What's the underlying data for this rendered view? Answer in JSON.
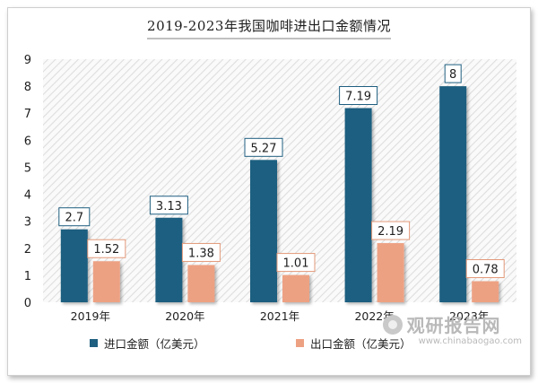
{
  "watermark": {
    "brand": "观研报告网",
    "site": "www.chinabaogao.com"
  },
  "chart_data": {
    "type": "bar",
    "title": "2019-2023年我国咖啡进出口金额情况",
    "categories": [
      "2019年",
      "2020年",
      "2021年",
      "2022年",
      "2023年"
    ],
    "series": [
      {
        "name": "进口金额（亿美元）",
        "values": [
          2.7,
          3.13,
          5.27,
          7.19,
          8
        ],
        "labels": [
          "2.7",
          "3.13",
          "5.27",
          "7.19",
          "8"
        ],
        "color": "#1f5f80"
      },
      {
        "name": "出口金额（亿美元）",
        "values": [
          1.52,
          1.38,
          1.01,
          2.19,
          0.78
        ],
        "labels": [
          "1.52",
          "1.38",
          "1.01",
          "2.19",
          "0.78"
        ],
        "color": "#eda183"
      }
    ],
    "yticks": [
      "0",
      "1",
      "2",
      "3",
      "4",
      "5",
      "6",
      "7",
      "8",
      "9"
    ],
    "ylim": [
      0,
      9
    ],
    "xlabel": "",
    "ylabel": "",
    "legend_position": "bottom",
    "grid": false
  }
}
